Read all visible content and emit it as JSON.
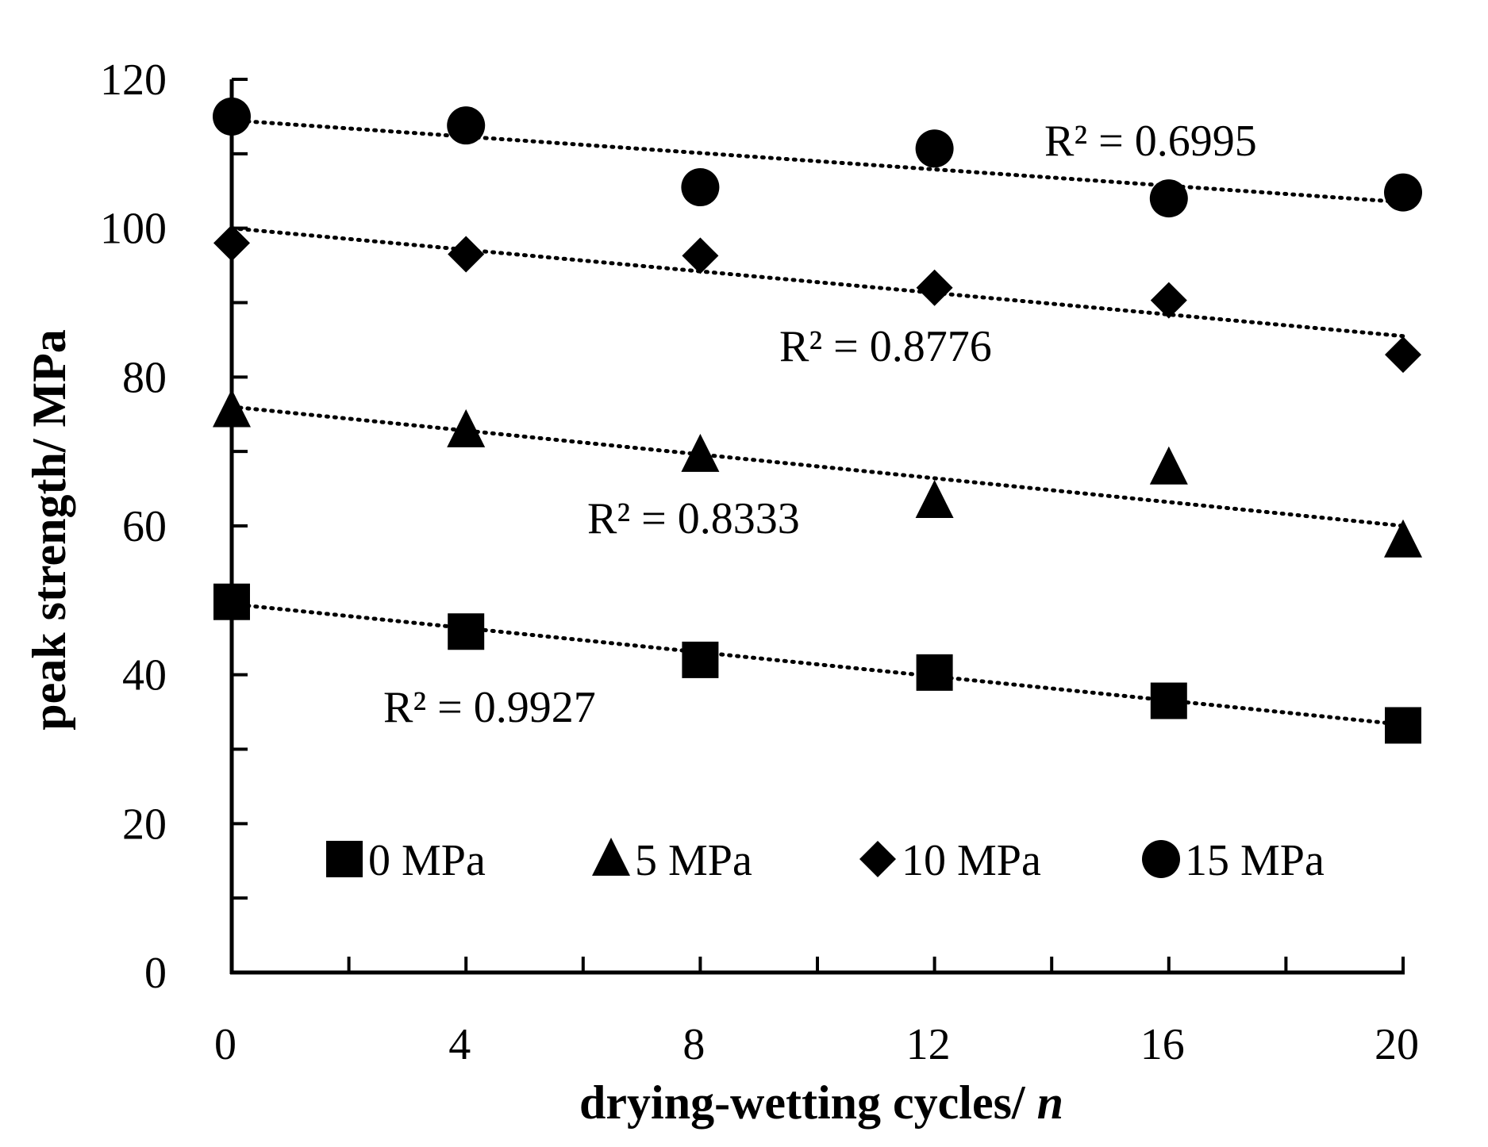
{
  "chart_data": {
    "type": "scatter",
    "xlabel": "drying-wetting cycles/ ",
    "xlabel_italic": "n",
    "ylabel": "peak strength/ MPa",
    "xlim": [
      0,
      20
    ],
    "ylim": [
      0,
      120
    ],
    "xticks": [
      "0",
      "4",
      "8",
      "12",
      "16",
      "20"
    ],
    "yticks": [
      "0",
      "20",
      "40",
      "60",
      "80",
      "100",
      "120"
    ],
    "x": [
      0,
      4,
      8,
      12,
      16,
      20
    ],
    "legend_position": "bottom-inside",
    "series": [
      {
        "name": "0 MPa",
        "marker": "square",
        "values": [
          49.8,
          45.8,
          42.0,
          40.3,
          36.5,
          33.2
        ],
        "trendline": {
          "style": "dotted",
          "start": 49.5,
          "end": 33.3
        },
        "r2_label": "R² = 0.9927"
      },
      {
        "name": "5 MPa",
        "marker": "triangle",
        "values": [
          75.5,
          72.8,
          69.5,
          63.3,
          67.8,
          58.0
        ],
        "trendline": {
          "style": "dotted",
          "start": 76.0,
          "end": 60.0
        },
        "r2_label": "R² = 0.8333"
      },
      {
        "name": "10 MPa",
        "marker": "diamond",
        "values": [
          98.0,
          96.5,
          96.3,
          92.0,
          90.3,
          83.0
        ],
        "trendline": {
          "style": "dotted",
          "start": 100.0,
          "end": 85.5
        },
        "r2_label": "R² = 0.8776"
      },
      {
        "name": "15 MPa",
        "marker": "circle",
        "values": [
          115.0,
          113.8,
          105.5,
          110.7,
          104.0,
          104.8
        ],
        "trendline": {
          "style": "dotted",
          "start": 114.5,
          "end": 103.5
        },
        "r2_label": "R² = 0.6995"
      }
    ]
  },
  "colors": {
    "ink": "#000000",
    "background": "#ffffff"
  }
}
